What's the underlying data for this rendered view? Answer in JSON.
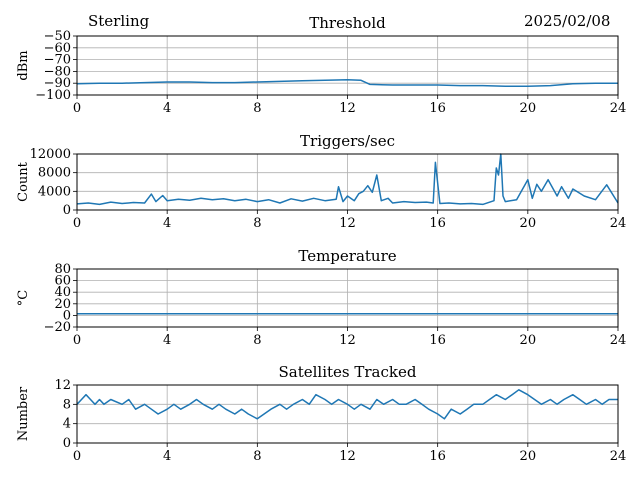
{
  "header": {
    "station": "Sterling",
    "date": "2025/02/08"
  },
  "colors": {
    "line": "#1f77b4",
    "grid": "#b0b0b0",
    "axis": "#000000"
  },
  "chart_data": [
    {
      "type": "line",
      "title": "Threshold",
      "xlabel": "",
      "ylabel": "dBm",
      "xlim": [
        0,
        24
      ],
      "ylim": [
        -100,
        -50
      ],
      "xticks": [
        0,
        4,
        8,
        12,
        16,
        20,
        24
      ],
      "yticks": [
        -100,
        -90,
        -80,
        -70,
        -60,
        -50
      ],
      "ytick_labels": [
        "−100",
        "−90",
        "−80",
        "−70",
        "−60",
        "−50"
      ],
      "grid": true,
      "series": [
        {
          "name": "Threshold",
          "x": [
            0,
            1,
            2,
            3,
            4,
            5,
            6,
            7,
            8,
            9,
            10,
            11,
            12,
            12.6,
            13.0,
            14,
            15,
            16,
            17,
            18,
            19,
            20,
            21,
            22,
            23,
            24
          ],
          "values": [
            -90.5,
            -90,
            -90,
            -89.5,
            -89,
            -89,
            -89.5,
            -89.5,
            -89,
            -88.5,
            -88,
            -87.5,
            -87,
            -87.5,
            -91,
            -91.5,
            -91.5,
            -91.5,
            -92,
            -92,
            -92.5,
            -92.5,
            -92,
            -90.5,
            -90,
            -90
          ]
        }
      ]
    },
    {
      "type": "line",
      "title": "Triggers/sec",
      "xlabel": "",
      "ylabel": "Count",
      "xlim": [
        0,
        24
      ],
      "ylim": [
        0,
        12000
      ],
      "xticks": [
        0,
        4,
        8,
        12,
        16,
        20,
        24
      ],
      "yticks": [
        0,
        4000,
        8000,
        12000
      ],
      "ytick_labels": [
        "0",
        "4000",
        "8000",
        "12000"
      ],
      "grid": true,
      "series": [
        {
          "name": "Triggers",
          "x": [
            0,
            0.5,
            1,
            1.5,
            2,
            2.5,
            3,
            3.3,
            3.5,
            3.8,
            4,
            4.5,
            5,
            5.5,
            6,
            6.5,
            7,
            7.5,
            8,
            8.5,
            9,
            9.5,
            10,
            10.5,
            11,
            11.5,
            11.6,
            11.8,
            12,
            12.3,
            12.5,
            12.7,
            12.9,
            13.1,
            13.3,
            13.5,
            13.8,
            14,
            14.5,
            15,
            15.5,
            15.8,
            15.9,
            16.1,
            16.5,
            17,
            17.5,
            18,
            18.5,
            18.6,
            18.7,
            18.8,
            18.9,
            19,
            19.5,
            20,
            20.2,
            20.4,
            20.6,
            20.9,
            21.3,
            21.5,
            21.8,
            22,
            22.5,
            23,
            23.5,
            24
          ],
          "values": [
            1300,
            1500,
            1200,
            1700,
            1400,
            1600,
            1500,
            3400,
            1800,
            3100,
            2000,
            2300,
            2100,
            2500,
            2200,
            2400,
            2000,
            2300,
            1800,
            2200,
            1500,
            2400,
            1900,
            2500,
            2000,
            2300,
            5000,
            1800,
            3000,
            2000,
            3500,
            4000,
            5200,
            3800,
            7500,
            2000,
            2500,
            1500,
            1800,
            1600,
            1700,
            1500,
            10200,
            1400,
            1500,
            1300,
            1400,
            1200,
            2000,
            9000,
            7500,
            12000,
            3000,
            1800,
            2200,
            6500,
            2500,
            5500,
            4000,
            6500,
            3000,
            5000,
            2500,
            4500,
            3000,
            2200,
            5400,
            1500
          ]
        }
      ]
    },
    {
      "type": "line",
      "title": "Temperature",
      "xlabel": "",
      "ylabel": "°C",
      "xlim": [
        0,
        24
      ],
      "ylim": [
        -20,
        80
      ],
      "xticks": [
        0,
        4,
        8,
        12,
        16,
        20,
        24
      ],
      "yticks": [
        -20,
        0,
        20,
        40,
        60,
        80
      ],
      "ytick_labels": [
        "−20",
        "0",
        "20",
        "40",
        "60",
        "80"
      ],
      "grid": true,
      "series": [
        {
          "name": "Temperature",
          "x": [
            0,
            24
          ],
          "values": [
            3,
            3
          ]
        }
      ]
    },
    {
      "type": "line",
      "title": "Satellites Tracked",
      "xlabel": "",
      "ylabel": "Number",
      "xlim": [
        0,
        24
      ],
      "ylim": [
        0,
        12
      ],
      "xticks": [
        0,
        4,
        8,
        12,
        16,
        20,
        24
      ],
      "yticks": [
        0,
        4,
        8,
        12
      ],
      "ytick_labels": [
        "0",
        "4",
        "8",
        "12"
      ],
      "grid": true,
      "series": [
        {
          "name": "Satellites",
          "x": [
            0,
            0.2,
            0.4,
            0.6,
            0.8,
            1.0,
            1.2,
            1.5,
            2.0,
            2.3,
            2.6,
            3.0,
            3.3,
            3.6,
            4.0,
            4.3,
            4.6,
            5.0,
            5.3,
            5.6,
            6.0,
            6.3,
            6.6,
            7.0,
            7.3,
            7.6,
            8.0,
            8.3,
            8.6,
            9.0,
            9.3,
            9.6,
            10.0,
            10.3,
            10.6,
            11.0,
            11.3,
            11.6,
            12.0,
            12.3,
            12.6,
            13.0,
            13.3,
            13.6,
            14.0,
            14.3,
            14.6,
            15.0,
            15.3,
            15.6,
            16.0,
            16.3,
            16.6,
            17.0,
            17.3,
            17.6,
            18.0,
            18.3,
            18.6,
            19.0,
            19.3,
            19.6,
            20.0,
            20.3,
            20.6,
            21.0,
            21.3,
            21.6,
            22.0,
            22.3,
            22.6,
            23.0,
            23.3,
            23.6,
            24.0
          ],
          "values": [
            8,
            9,
            10,
            9,
            8,
            9,
            8,
            9,
            8,
            9,
            7,
            8,
            7,
            6,
            7,
            8,
            7,
            8,
            9,
            8,
            7,
            8,
            7,
            6,
            7,
            6,
            5,
            6,
            7,
            8,
            7,
            8,
            9,
            8,
            10,
            9,
            8,
            9,
            8,
            7,
            8,
            7,
            9,
            8,
            9,
            8,
            8,
            9,
            8,
            7,
            6,
            5,
            7,
            6,
            7,
            8,
            8,
            9,
            10,
            9,
            10,
            11,
            10,
            9,
            8,
            9,
            8,
            9,
            10,
            9,
            8,
            9,
            8,
            9,
            9
          ]
        }
      ]
    }
  ]
}
